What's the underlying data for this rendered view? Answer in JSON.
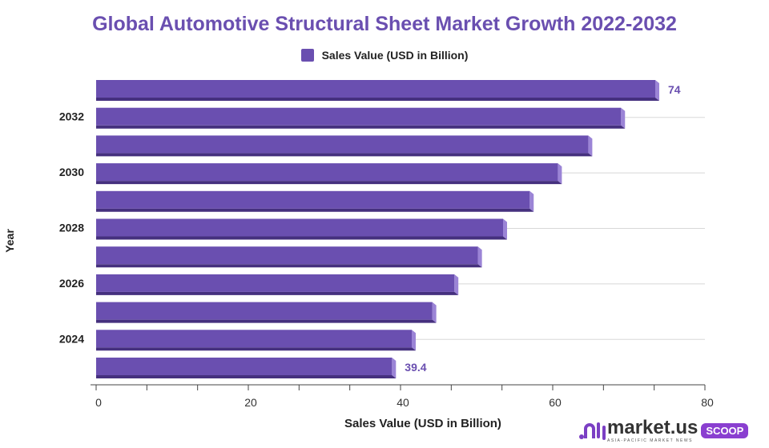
{
  "chart_data": {
    "type": "bar",
    "orientation": "horizontal",
    "title": "Global Automotive Structural Sheet Market Growth 2022-2032",
    "xlabel": "Sales Value (USD in Billion)",
    "ylabel": "Year",
    "xlim": [
      0,
      80
    ],
    "x_tick_labels": [
      "0",
      "20",
      "40",
      "60",
      "80"
    ],
    "legend": {
      "position": "top",
      "entries": [
        "Sales Value (USD in Billion)"
      ]
    },
    "grid": false,
    "rows_top_to_bottom": [
      {
        "label": "",
        "value": 74,
        "data_label": "74"
      },
      {
        "label": "2032",
        "value": 69.5
      },
      {
        "label": "",
        "value": 65.2
      },
      {
        "label": "2030",
        "value": 61.2
      },
      {
        "label": "",
        "value": 57.5
      },
      {
        "label": "2028",
        "value": 54.0
      },
      {
        "label": "",
        "value": 50.7
      },
      {
        "label": "2026",
        "value": 47.6
      },
      {
        "label": "",
        "value": 44.7
      },
      {
        "label": "2024",
        "value": 42.0
      },
      {
        "label": "",
        "value": 39.4,
        "data_label": "39.4"
      }
    ],
    "colors": {
      "bar": "#6a4fb0",
      "bar_shadow": "#45307e",
      "bar_edge": "#9b84d6",
      "label": "#6a4fb0"
    }
  },
  "logo": {
    "brand": "market.us",
    "tagline": "ASIA-PACIFIC MARKET NEWS",
    "badge": "SCOOP"
  }
}
